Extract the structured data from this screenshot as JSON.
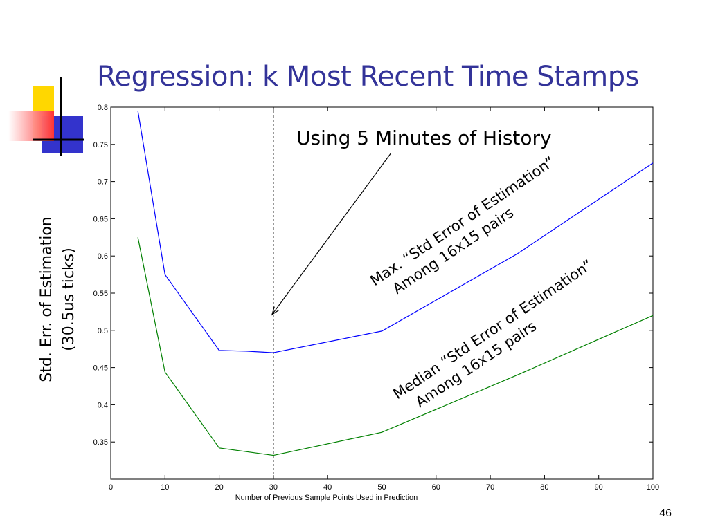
{
  "slide": {
    "title": "Regression: k Most Recent Time Stamps",
    "page_number": "46",
    "title_color": "#333399"
  },
  "decoration": {
    "name": "slide-logo-squares",
    "colors": {
      "yellow": "#ffd700",
      "blue": "#3333cc",
      "red": "#ff3333",
      "line": "#000000"
    }
  },
  "chart_data": {
    "type": "line",
    "xlabel": "Number of Previous Sample Points Used in Prediction",
    "ylabel": [
      "Std. Err. of Estimation",
      "(30.5us ticks)"
    ],
    "xlim": [
      0,
      100
    ],
    "ylim": [
      0.3,
      0.8
    ],
    "x_ticks": [
      0,
      10,
      20,
      30,
      40,
      50,
      60,
      70,
      80,
      90,
      100
    ],
    "y_ticks": [
      0.35,
      0.4,
      0.45,
      0.5,
      0.55,
      0.6,
      0.65,
      0.7,
      0.75,
      0.8
    ],
    "grid": false,
    "series": [
      {
        "color": "#0000ff",
        "x": [
          5,
          10,
          20,
          25,
          30,
          50,
          75,
          100
        ],
        "y": [
          0.795,
          0.575,
          0.473,
          0.472,
          0.47,
          0.499,
          0.603,
          0.725
        ]
      },
      {
        "color": "#008000",
        "x": [
          5,
          10,
          20,
          30,
          50,
          75,
          100
        ],
        "y": [
          0.625,
          0.444,
          0.342,
          0.332,
          0.363,
          0.44,
          0.52
        ]
      }
    ],
    "reference_line": {
      "x": 30,
      "style": "dashed",
      "color": "#000000"
    },
    "annotations": [
      {
        "text": "Using 5 Minutes of History",
        "arrow_to": [
          30,
          0.523
        ]
      },
      {
        "lines": [
          "Max. “Std Error of Estimation”",
          "Among 16x15 pairs"
        ]
      },
      {
        "lines": [
          "Median “Std Error of Estimation”",
          "Among 16x15 pairs"
        ]
      }
    ]
  }
}
